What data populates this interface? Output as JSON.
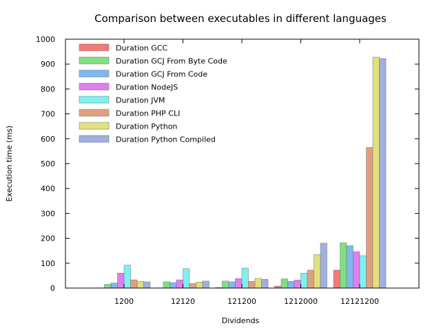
{
  "chart_data": {
    "type": "bar",
    "title": "Comparison between executables in different languages",
    "xlabel": "Dividends",
    "ylabel": "Execution time (ms)",
    "ylim": [
      0,
      1000
    ],
    "yticks": [
      0,
      100,
      200,
      300,
      400,
      500,
      600,
      700,
      800,
      900,
      1000
    ],
    "grid": false,
    "legend_position": "top-left",
    "categories": [
      "1200",
      "12120",
      "121200",
      "1212000",
      "12121200"
    ],
    "series": [
      {
        "name": "Duration GCC",
        "color": "#f47a7a",
        "values": [
          1,
          1,
          2,
          8,
          72
        ]
      },
      {
        "name": "Duration GCJ From Byte Code",
        "color": "#7fe07f",
        "values": [
          15,
          25,
          28,
          37,
          182
        ]
      },
      {
        "name": "Duration GCJ From Code",
        "color": "#7fb8f0",
        "values": [
          20,
          22,
          25,
          27,
          170
        ]
      },
      {
        "name": "Duration NodeJS",
        "color": "#e07ff0",
        "values": [
          60,
          33,
          38,
          32,
          146
        ]
      },
      {
        "name": "Duration JVM",
        "color": "#7ff0f0",
        "values": [
          92,
          78,
          80,
          60,
          130
        ]
      },
      {
        "name": "Duration PHP CLI",
        "color": "#e0a07f",
        "values": [
          33,
          18,
          27,
          72,
          565
        ]
      },
      {
        "name": "Duration Python",
        "color": "#e0e07f",
        "values": [
          27,
          24,
          39,
          135,
          928
        ]
      },
      {
        "name": "Duration Python Compiled",
        "color": "#a0b0e0",
        "values": [
          25,
          28,
          35,
          180,
          922
        ]
      }
    ]
  }
}
